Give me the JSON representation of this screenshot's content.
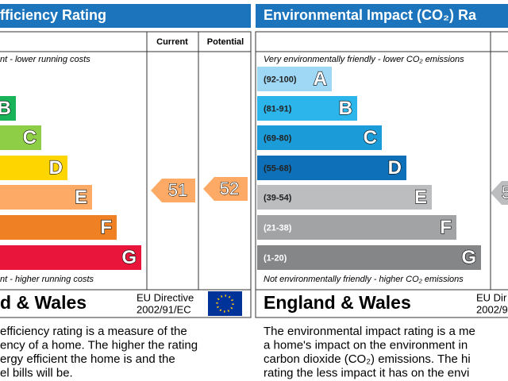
{
  "energy": {
    "title": "fficiency Rating",
    "col_current": "Current",
    "col_potential": "Potential",
    "top_note": "nt - lower running costs",
    "bands": [
      {
        "letter": "B",
        "color": "#19b459"
      },
      {
        "letter": "C",
        "color": "#8dce46"
      },
      {
        "letter": "D",
        "color": "#ffd500"
      },
      {
        "letter": "E",
        "color": "#fcaa65"
      },
      {
        "letter": "F",
        "color": "#ef8023"
      },
      {
        "letter": "G",
        "color": "#e9153b"
      }
    ],
    "bottom_note": "nt - higher running costs",
    "region": "d & Wales",
    "directive": [
      "EU Directive",
      "2002/91/EC"
    ],
    "current": "51",
    "potential": "52",
    "arrow_color": "#fcaa65",
    "description": [
      "efficiency rating is a measure of the",
      "ency of a home. The higher the rating",
      "ergy efficient the home is and the",
      "el bills will be."
    ]
  },
  "environment": {
    "title": "Environmental Impact (CO₂) Ra",
    "top_note": "Very environmentally friendly - lower CO₂ emissions",
    "bands": [
      {
        "range": "(92-100)",
        "letter": "A",
        "color": "#9fd8f5"
      },
      {
        "range": "(81-91)",
        "letter": "B",
        "color": "#2cb5ea"
      },
      {
        "range": "(69-80)",
        "letter": "C",
        "color": "#1b9bd7"
      },
      {
        "range": "(55-68)",
        "letter": "D",
        "color": "#0d70b8"
      },
      {
        "range": "(39-54)",
        "letter": "E",
        "color": "#bcbdbf"
      },
      {
        "range": "(21-38)",
        "letter": "F",
        "color": "#a2a3a5"
      },
      {
        "range": "(1-20)",
        "letter": "G",
        "color": "#858688"
      }
    ],
    "bottom_note": "Not environmentally friendly - higher CO₂ emissions",
    "region": "England & Wales",
    "directive": [
      "EU Dir",
      "2002/9"
    ],
    "current": "5",
    "arrow_color": "#bcbdbf",
    "description": [
      "The environmental impact rating is a me",
      "a home's impact on the environment in",
      "carbon dioxide (CO₂) emissions. The hi",
      "rating the less impact it has on the envi"
    ]
  }
}
